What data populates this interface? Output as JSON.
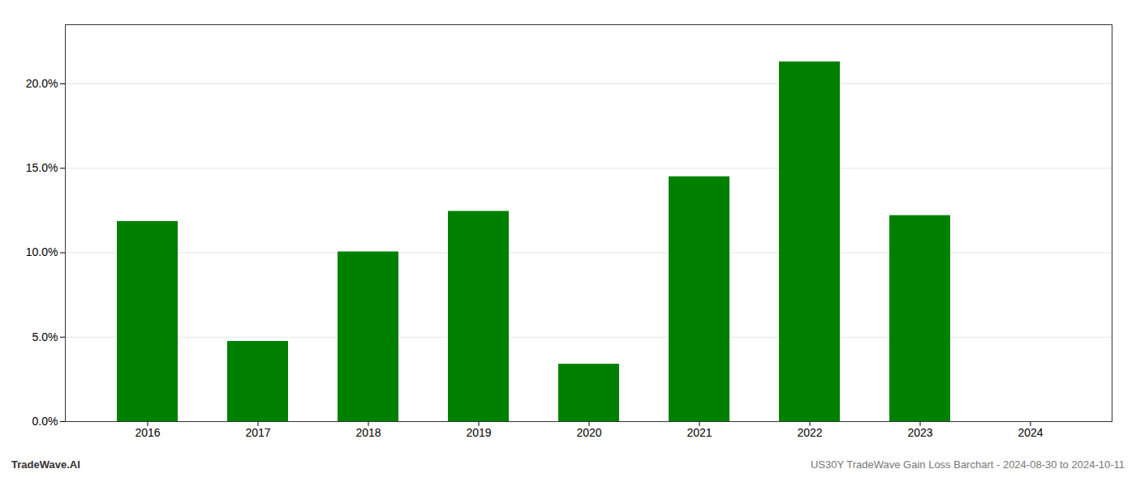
{
  "chart_data": {
    "type": "bar",
    "categories": [
      "2016",
      "2017",
      "2018",
      "2019",
      "2020",
      "2021",
      "2022",
      "2023",
      "2024"
    ],
    "values": [
      0.1185,
      0.0475,
      0.1005,
      0.1245,
      0.034,
      0.145,
      0.213,
      0.122,
      0.0
    ],
    "color": "#008000",
    "ylim": [
      0,
      0.235
    ],
    "yticks": [
      {
        "value": 0.0,
        "label": "0.0%"
      },
      {
        "value": 0.05,
        "label": "5.0%"
      },
      {
        "value": 0.1,
        "label": "10.0%"
      },
      {
        "value": 0.15,
        "label": "15.0%"
      },
      {
        "value": 0.2,
        "label": "20.0%"
      }
    ],
    "grid": true,
    "annotations": [
      "TradeWave.AI",
      "US30Y TradeWave Gain Loss Barchart - 2024-08-30 to 2024-10-11"
    ]
  }
}
